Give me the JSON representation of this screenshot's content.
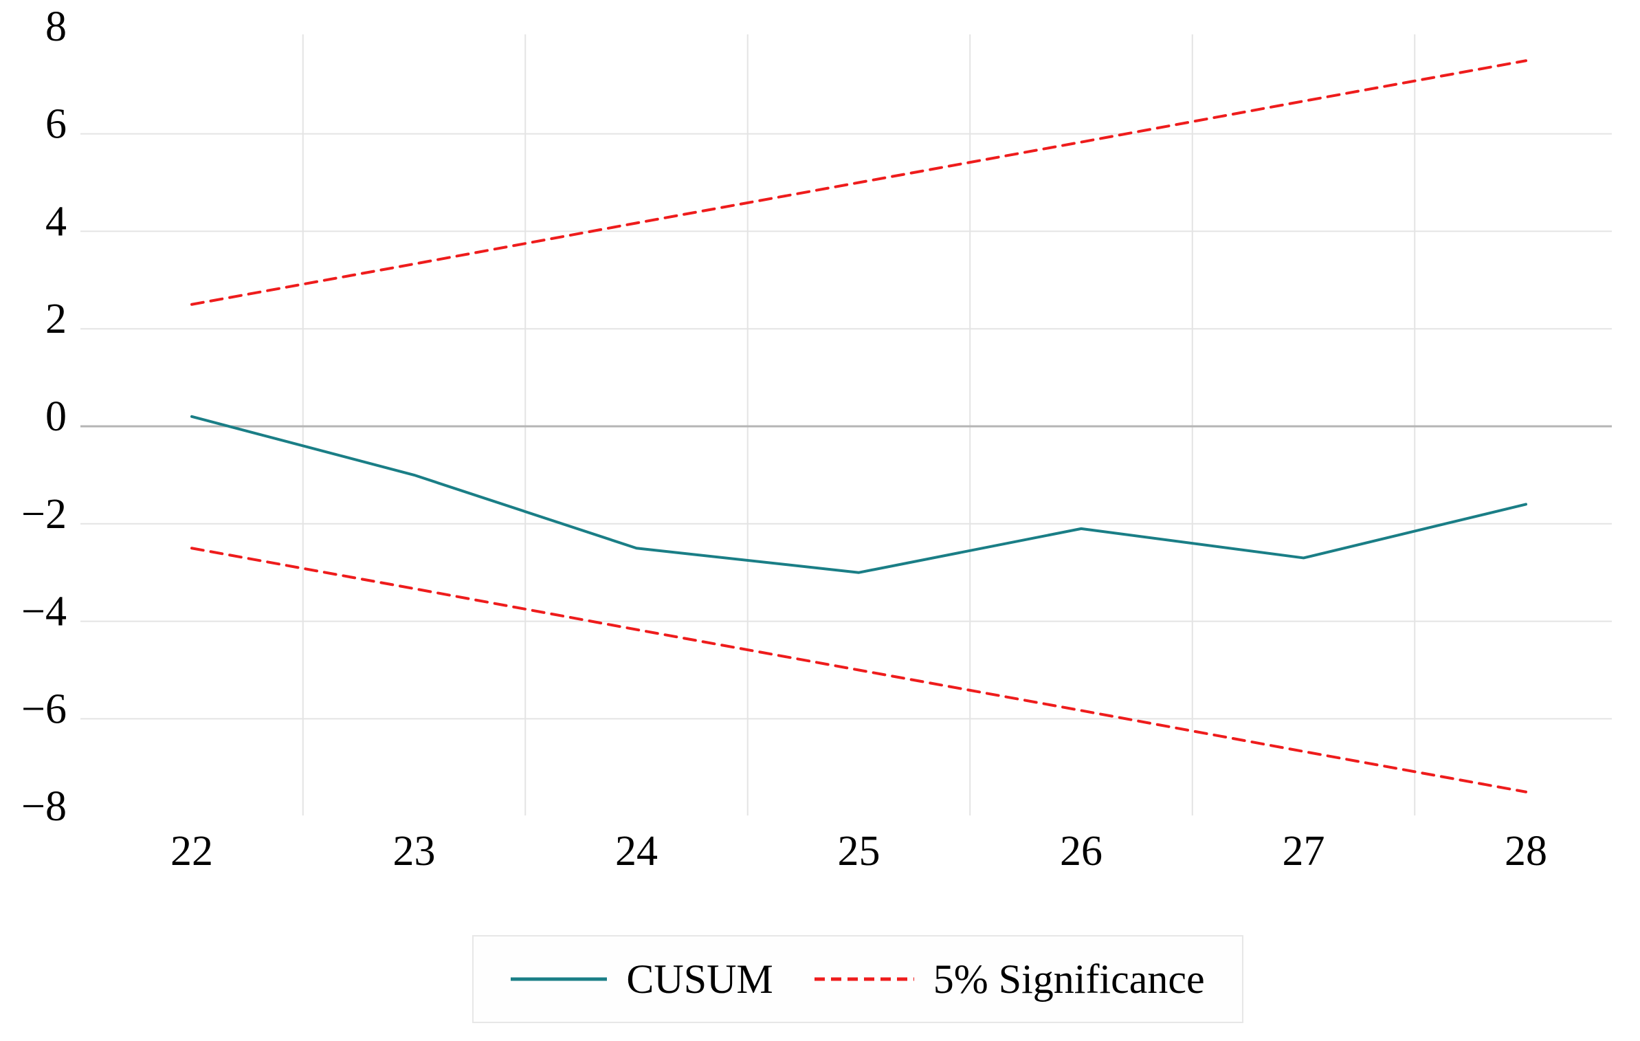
{
  "chart_data": {
    "type": "line",
    "x": [
      22,
      23,
      24,
      25,
      26,
      27,
      28
    ],
    "series": [
      {
        "name": "CUSUM",
        "color": "#1a7e86",
        "style": "solid",
        "values": [
          0.2,
          -1.0,
          -2.5,
          -3.0,
          -2.1,
          -2.7,
          -1.6
        ]
      },
      {
        "name": "5% Significance upper bound",
        "color": "#ee1c1c",
        "style": "dashed",
        "values": [
          2.5,
          3.33,
          4.17,
          5.0,
          5.83,
          6.67,
          7.5
        ]
      },
      {
        "name": "5% Significance lower bound",
        "color": "#ee1c1c",
        "style": "dashed",
        "values": [
          -2.5,
          -3.33,
          -4.17,
          -5.0,
          -5.83,
          -6.67,
          -7.5
        ]
      }
    ],
    "title": "",
    "xlabel": "",
    "ylabel": "",
    "xlim": [
      21.5,
      28.4
    ],
    "ylim": [
      -8,
      8
    ],
    "x_ticks": [
      22,
      23,
      24,
      25,
      26,
      27,
      28
    ],
    "x_tick_labels": [
      "22",
      "23",
      "24",
      "25",
      "26",
      "27",
      "28"
    ],
    "y_ticks": [
      8,
      6,
      4,
      2,
      0,
      -2,
      -4,
      -6,
      -8
    ],
    "y_tick_labels": [
      "8",
      "6",
      "4",
      "2",
      "0",
      "−2",
      "−4",
      "−6",
      "−8"
    ],
    "grid": {
      "vertical_at": [
        22.5,
        23.5,
        24.5,
        25.5,
        26.5,
        27.5
      ],
      "horizontal_at": [
        6,
        4,
        2,
        -2,
        -4,
        -6
      ],
      "zero_line_at": 0,
      "grid_color": "#e4e4e4",
      "zero_line_color": "#b5b5b5",
      "grid_on": true
    },
    "legend_position": "bottom-center"
  },
  "legend": {
    "items": [
      {
        "label": "CUSUM",
        "color": "#1a7e86",
        "style": "solid"
      },
      {
        "label": "5% Significance",
        "color": "#ee1c1c",
        "style": "dashed"
      }
    ]
  }
}
